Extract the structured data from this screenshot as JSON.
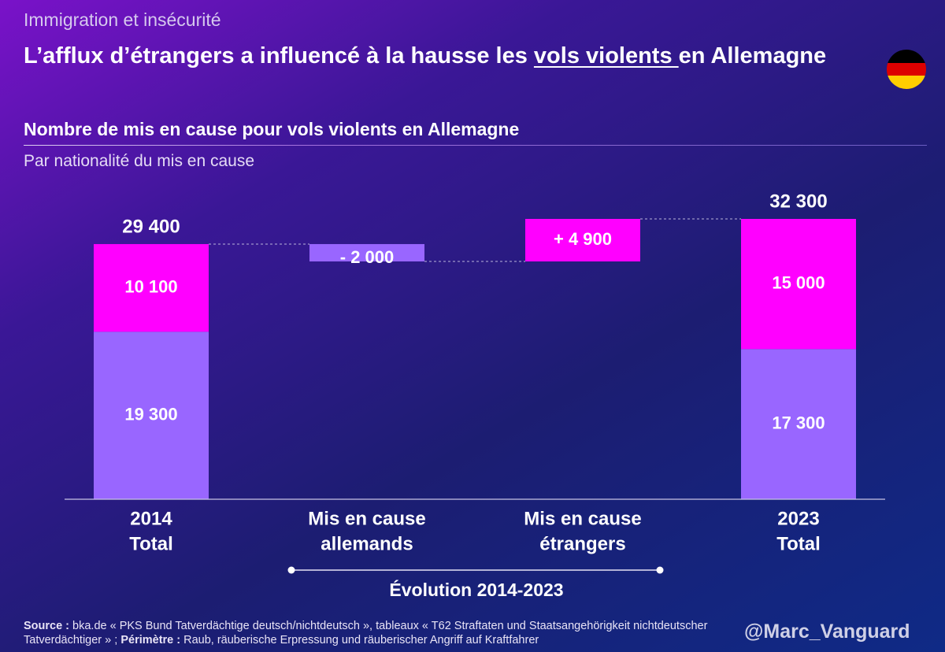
{
  "header": {
    "category": "Immigration et insécurité",
    "headline_before": "L’afflux d’étrangers a influencé à la hausse les ",
    "headline_emphasis": "vols violents ",
    "headline_after": "en Allemagne"
  },
  "flag": {
    "icon": "germany-flag-icon",
    "colors": [
      "#000000",
      "#dd0000",
      "#ffce00"
    ]
  },
  "chart_data": {
    "type": "bar",
    "subtype": "waterfall-stacked",
    "title": "Nombre de mis en cause pour vols violents en Allemagne",
    "subtitle": "Par nationalité du mis en cause",
    "categories": [
      {
        "line1": "2014",
        "line2": "Total"
      },
      {
        "line1": "Mis en cause",
        "line2": "allemands"
      },
      {
        "line1": "Mis en cause",
        "line2": "étrangers"
      },
      {
        "line1": "2023",
        "line2": "Total"
      }
    ],
    "series": [
      {
        "key": "german",
        "color": "#9966ff"
      },
      {
        "key": "foreign",
        "color": "#ff00ff"
      }
    ],
    "columns": [
      {
        "kind": "total",
        "german": 19300,
        "foreign": 10100,
        "german_label": "19 300",
        "foreign_label": "10 100",
        "total": 29400,
        "total_label": "29 400"
      },
      {
        "kind": "delta",
        "series": "german",
        "start": 29400,
        "end": 27400,
        "label": "- 2 000"
      },
      {
        "kind": "delta",
        "series": "foreign",
        "start": 27400,
        "end": 32300,
        "label": "+ 4 900"
      },
      {
        "kind": "total",
        "german": 17300,
        "foreign": 15000,
        "german_label": "17 300",
        "foreign_label": "15 000",
        "total": 32300,
        "total_label": "32 300"
      }
    ],
    "ylim": [
      0,
      32300
    ],
    "grid": false,
    "legend": "none",
    "bracket_label": "Évolution 2014-2023"
  },
  "footer": {
    "source_label": "Source :",
    "source_text": " bka.de « PKS Bund Tatverdächtige deutsch/nichtdeutsch », tableaux « T62 Straftaten und Staatsangehörigkeit nichtdeutscher Tatverdächtiger »  ; ",
    "scope_label": "Périmètre :",
    "scope_text": " Raub, räuberische Erpressung und räuberischer Angriff auf Kraftfahrer",
    "signature": "@Marc_Vanguard"
  }
}
